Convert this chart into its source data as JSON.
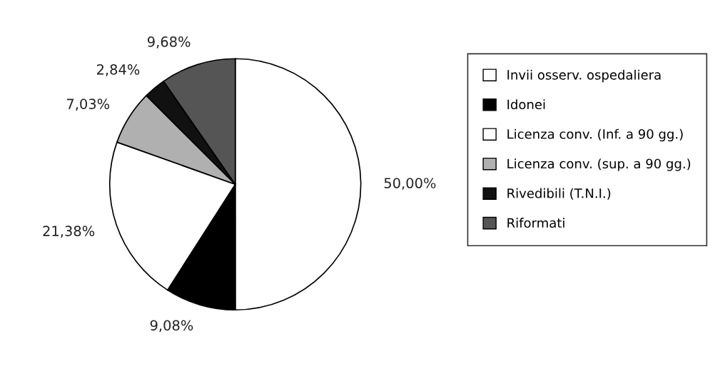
{
  "chart_data": {
    "type": "pie",
    "categories": [
      "Invii osserv. ospedaliera",
      "Idonei",
      "Licenza conv. (Inf. a 90 gg.)",
      "Licenza conv. (sup. a 90 gg.)",
      "Rivedibili (T.N.I.)",
      "Riformati"
    ],
    "values": [
      50.0,
      9.08,
      21.38,
      7.03,
      2.84,
      9.68
    ],
    "value_labels": [
      "50,00%",
      "9,08%",
      "21,38%",
      "7,03%",
      "2,84%",
      "9,68%"
    ],
    "colors": [
      "#ffffff",
      "#000000",
      "#ffffff",
      "#b0b0b0",
      "#111111",
      "#555555"
    ],
    "legend": "right"
  }
}
